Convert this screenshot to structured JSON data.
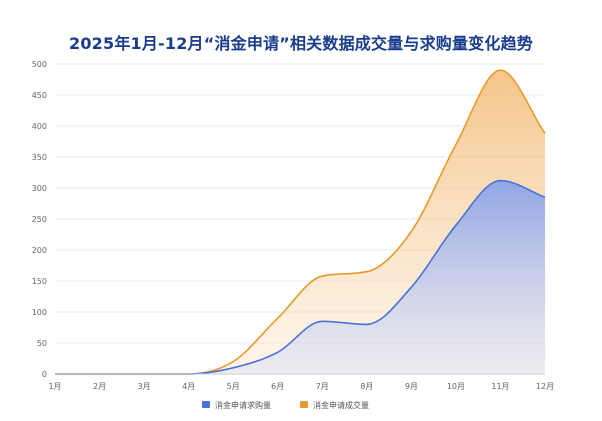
{
  "chart_data": {
    "type": "area",
    "title": "2025年1月-12月“消金申请”相关数据成交量与求购量变化趋势",
    "categories": [
      "1月",
      "2月",
      "3月",
      "4月",
      "5月",
      "6月",
      "7月",
      "8月",
      "9月",
      "10月",
      "11月",
      "12月"
    ],
    "ylim": [
      0,
      500
    ],
    "yticks": [
      0,
      50,
      100,
      150,
      200,
      250,
      300,
      350,
      400,
      450,
      500
    ],
    "grid": true,
    "legend_position": "bottom",
    "series": [
      {
        "name": "消金申请求购量",
        "color": "#4a72d9",
        "values": [
          0,
          0,
          0,
          0,
          10,
          35,
          85,
          80,
          140,
          240,
          312,
          285
        ]
      },
      {
        "name": "消金申请成交量",
        "color": "#e89a2c",
        "values": [
          0,
          0,
          0,
          0,
          20,
          90,
          158,
          165,
          230,
          370,
          490,
          388
        ]
      }
    ]
  }
}
